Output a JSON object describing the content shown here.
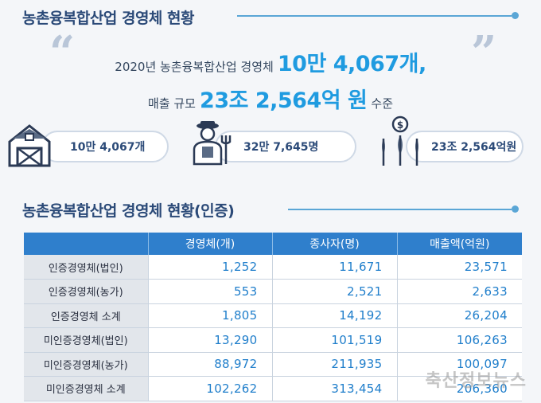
{
  "section1": {
    "title": "농촌융복합산업 경영체 현황"
  },
  "headline": {
    "line1_prefix": "2020년 농촌융복합산업 경영체",
    "line1_value": "10만 4,067개,",
    "line2_prefix": "매출 규모",
    "line2_value": "23조 2,564억 원",
    "line2_suffix": "수준"
  },
  "stats": [
    {
      "icon": "barn-icon",
      "value": "10만 4,067개"
    },
    {
      "icon": "farmer-icon",
      "value": "32만 7,645명"
    },
    {
      "icon": "money-crop-icon",
      "value": "23조 2,564억원"
    }
  ],
  "section2": {
    "title": "농촌융복합산업 경영체 현황(인증)"
  },
  "table": {
    "headers": [
      "",
      "경영체(개)",
      "종사자(명)",
      "매출액(억원)"
    ],
    "rows": [
      {
        "label": "인증경영체(법인)",
        "values": [
          "1,252",
          "11,671",
          "23,571"
        ]
      },
      {
        "label": "인증경영체(농가)",
        "values": [
          "553",
          "2,521",
          "2,633"
        ]
      },
      {
        "label": "인증경영체 소계",
        "values": [
          "1,805",
          "14,192",
          "26,204"
        ]
      },
      {
        "label": "미인증경영체(법인)",
        "values": [
          "13,290",
          "101,519",
          "106,263"
        ]
      },
      {
        "label": "미인증경영체(농가)",
        "values": [
          "88,972",
          "211,935",
          "100,097"
        ]
      },
      {
        "label": "미인증경영체 소계",
        "values": [
          "102,262",
          "313,454",
          "206,360"
        ]
      }
    ]
  },
  "watermark": "축산정보뉴스",
  "colors": {
    "accent": "#1f9be0",
    "navy": "#2b4a78",
    "header": "#2f7fcc"
  }
}
